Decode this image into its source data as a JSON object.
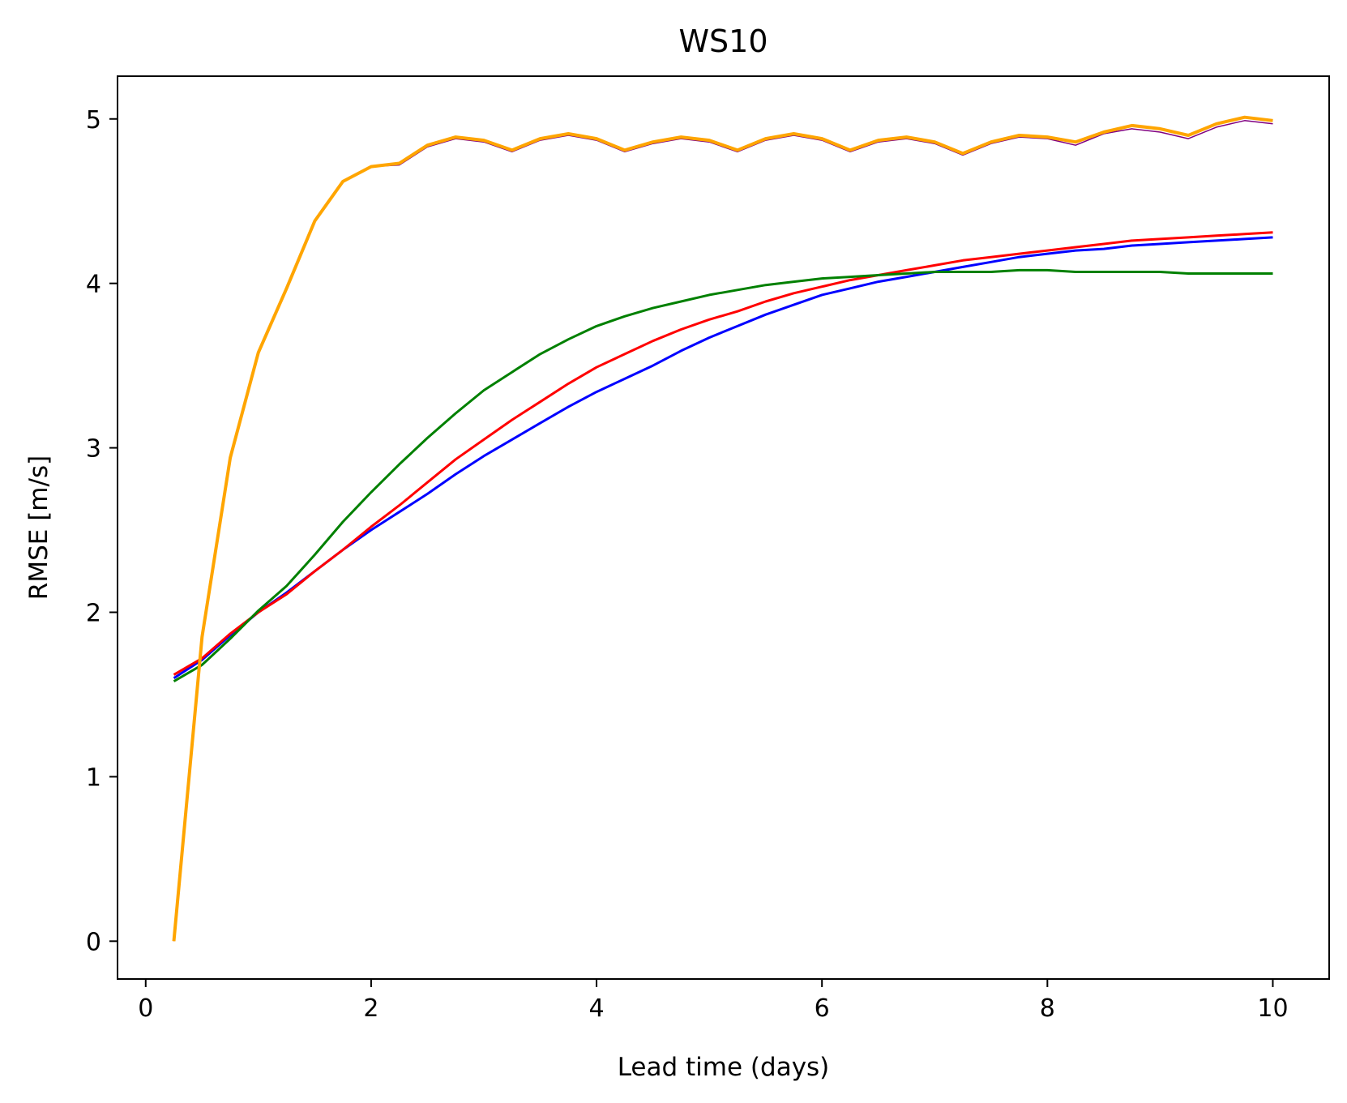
{
  "chart_data": {
    "type": "line",
    "title": "WS10",
    "xlabel": "Lead time (days)",
    "ylabel": "RMSE [m/s]",
    "xlim": [
      -0.25,
      10.5
    ],
    "ylim": [
      -0.23,
      5.26
    ],
    "xticks": [
      0,
      2,
      4,
      6,
      8,
      10
    ],
    "yticks": [
      0,
      1,
      2,
      3,
      4,
      5
    ],
    "grid": false,
    "x": [
      0.25,
      0.5,
      0.75,
      1.0,
      1.25,
      1.5,
      1.75,
      2.0,
      2.25,
      2.5,
      2.75,
      3.0,
      3.25,
      3.5,
      3.75,
      4.0,
      4.25,
      4.5,
      4.75,
      5.0,
      5.25,
      5.5,
      5.75,
      6.0,
      6.25,
      6.5,
      6.75,
      7.0,
      7.25,
      7.5,
      7.75,
      8.0,
      8.25,
      8.5,
      8.75,
      9.0,
      9.25,
      9.5,
      9.75,
      10.0
    ],
    "series": [
      {
        "color": "#800080",
        "width": 1.5,
        "values": [
          0.0,
          1.85,
          2.94,
          3.58,
          3.97,
          4.38,
          4.62,
          4.71,
          4.72,
          4.83,
          4.88,
          4.86,
          4.8,
          4.87,
          4.9,
          4.87,
          4.8,
          4.85,
          4.88,
          4.86,
          4.8,
          4.87,
          4.9,
          4.87,
          4.8,
          4.86,
          4.88,
          4.85,
          4.78,
          4.85,
          4.89,
          4.88,
          4.84,
          4.91,
          4.94,
          4.92,
          4.88,
          4.95,
          4.99,
          4.97
        ]
      },
      {
        "color": "#0000ff",
        "width": 3,
        "values": [
          1.6,
          1.71,
          1.86,
          2.0,
          2.12,
          2.25,
          2.38,
          2.5,
          2.61,
          2.72,
          2.84,
          2.95,
          3.05,
          3.15,
          3.25,
          3.34,
          3.42,
          3.5,
          3.59,
          3.67,
          3.74,
          3.81,
          3.87,
          3.93,
          3.97,
          4.01,
          4.04,
          4.07,
          4.1,
          4.13,
          4.16,
          4.18,
          4.2,
          4.21,
          4.23,
          4.24,
          4.25,
          4.26,
          4.27,
          4.28
        ]
      },
      {
        "color": "#ff0000",
        "width": 3,
        "values": [
          1.62,
          1.72,
          1.87,
          2.0,
          2.11,
          2.25,
          2.38,
          2.52,
          2.65,
          2.79,
          2.93,
          3.05,
          3.17,
          3.28,
          3.39,
          3.49,
          3.57,
          3.65,
          3.72,
          3.78,
          3.83,
          3.89,
          3.94,
          3.98,
          4.02,
          4.05,
          4.08,
          4.11,
          4.14,
          4.16,
          4.18,
          4.2,
          4.22,
          4.24,
          4.26,
          4.27,
          4.28,
          4.29,
          4.3,
          4.31
        ]
      },
      {
        "color": "#008000",
        "width": 3,
        "values": [
          1.58,
          1.68,
          1.84,
          2.01,
          2.16,
          2.35,
          2.55,
          2.73,
          2.9,
          3.06,
          3.21,
          3.35,
          3.46,
          3.57,
          3.66,
          3.74,
          3.8,
          3.85,
          3.89,
          3.93,
          3.96,
          3.99,
          4.01,
          4.03,
          4.04,
          4.05,
          4.06,
          4.07,
          4.07,
          4.07,
          4.08,
          4.08,
          4.07,
          4.07,
          4.07,
          4.07,
          4.06,
          4.06,
          4.06,
          4.06
        ]
      },
      {
        "color": "#ffa500",
        "width": 4,
        "values": [
          0.0,
          1.85,
          2.94,
          3.58,
          3.97,
          4.38,
          4.62,
          4.71,
          4.73,
          4.84,
          4.89,
          4.87,
          4.81,
          4.88,
          4.91,
          4.88,
          4.81,
          4.86,
          4.89,
          4.87,
          4.81,
          4.88,
          4.91,
          4.88,
          4.81,
          4.87,
          4.89,
          4.86,
          4.79,
          4.86,
          4.9,
          4.89,
          4.86,
          4.92,
          4.96,
          4.94,
          4.9,
          4.97,
          5.01,
          4.99
        ]
      }
    ]
  }
}
